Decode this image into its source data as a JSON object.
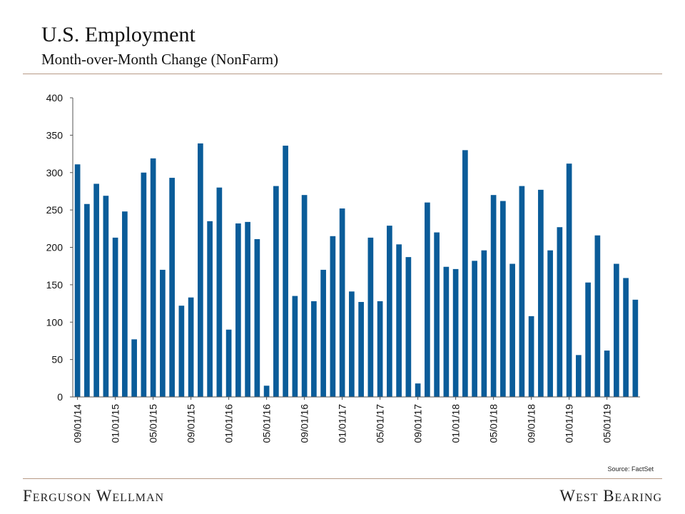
{
  "header": {
    "title": "U.S. Employment",
    "subtitle": "Month-over-Month Change (NonFarm)"
  },
  "source": "Source: FactSet",
  "footer": {
    "left_brand": "Ferguson Wellman",
    "right_brand": "West Bearing"
  },
  "colors": {
    "bar": "#0a5c99",
    "rule": "#b79a86",
    "axis": "#555555",
    "text": "#111111"
  },
  "chart_data": {
    "type": "bar",
    "title": "U.S. Employment",
    "subtitle": "Month-over-Month Change (NonFarm)",
    "xlabel": "",
    "ylabel": "",
    "ylim": [
      0,
      400
    ],
    "yticks": [
      0,
      50,
      100,
      150,
      200,
      250,
      300,
      350,
      400
    ],
    "grid": false,
    "xtick_labels": [
      {
        "index": 0,
        "label": "09/01/14"
      },
      {
        "index": 4,
        "label": "01/01/15"
      },
      {
        "index": 8,
        "label": "05/01/15"
      },
      {
        "index": 12,
        "label": "09/01/15"
      },
      {
        "index": 16,
        "label": "01/01/16"
      },
      {
        "index": 20,
        "label": "05/01/16"
      },
      {
        "index": 24,
        "label": "09/01/16"
      },
      {
        "index": 28,
        "label": "01/01/17"
      },
      {
        "index": 32,
        "label": "05/01/17"
      },
      {
        "index": 36,
        "label": "09/01/17"
      },
      {
        "index": 40,
        "label": "01/01/18"
      },
      {
        "index": 44,
        "label": "05/01/18"
      },
      {
        "index": 48,
        "label": "09/01/18"
      },
      {
        "index": 52,
        "label": "01/01/19"
      },
      {
        "index": 56,
        "label": "05/01/19"
      }
    ],
    "series": [
      {
        "name": "NonFarm MoM Change",
        "values": [
          311,
          258,
          285,
          269,
          213,
          248,
          77,
          300,
          319,
          170,
          293,
          122,
          133,
          339,
          235,
          280,
          90,
          232,
          234,
          211,
          15,
          282,
          336,
          135,
          270,
          128,
          170,
          215,
          252,
          141,
          127,
          213,
          128,
          229,
          204,
          187,
          18,
          260,
          220,
          174,
          171,
          330,
          182,
          196,
          270,
          262,
          178,
          282,
          108,
          277,
          196,
          227,
          312,
          56,
          153,
          216,
          62,
          178,
          159,
          130
        ]
      }
    ]
  }
}
